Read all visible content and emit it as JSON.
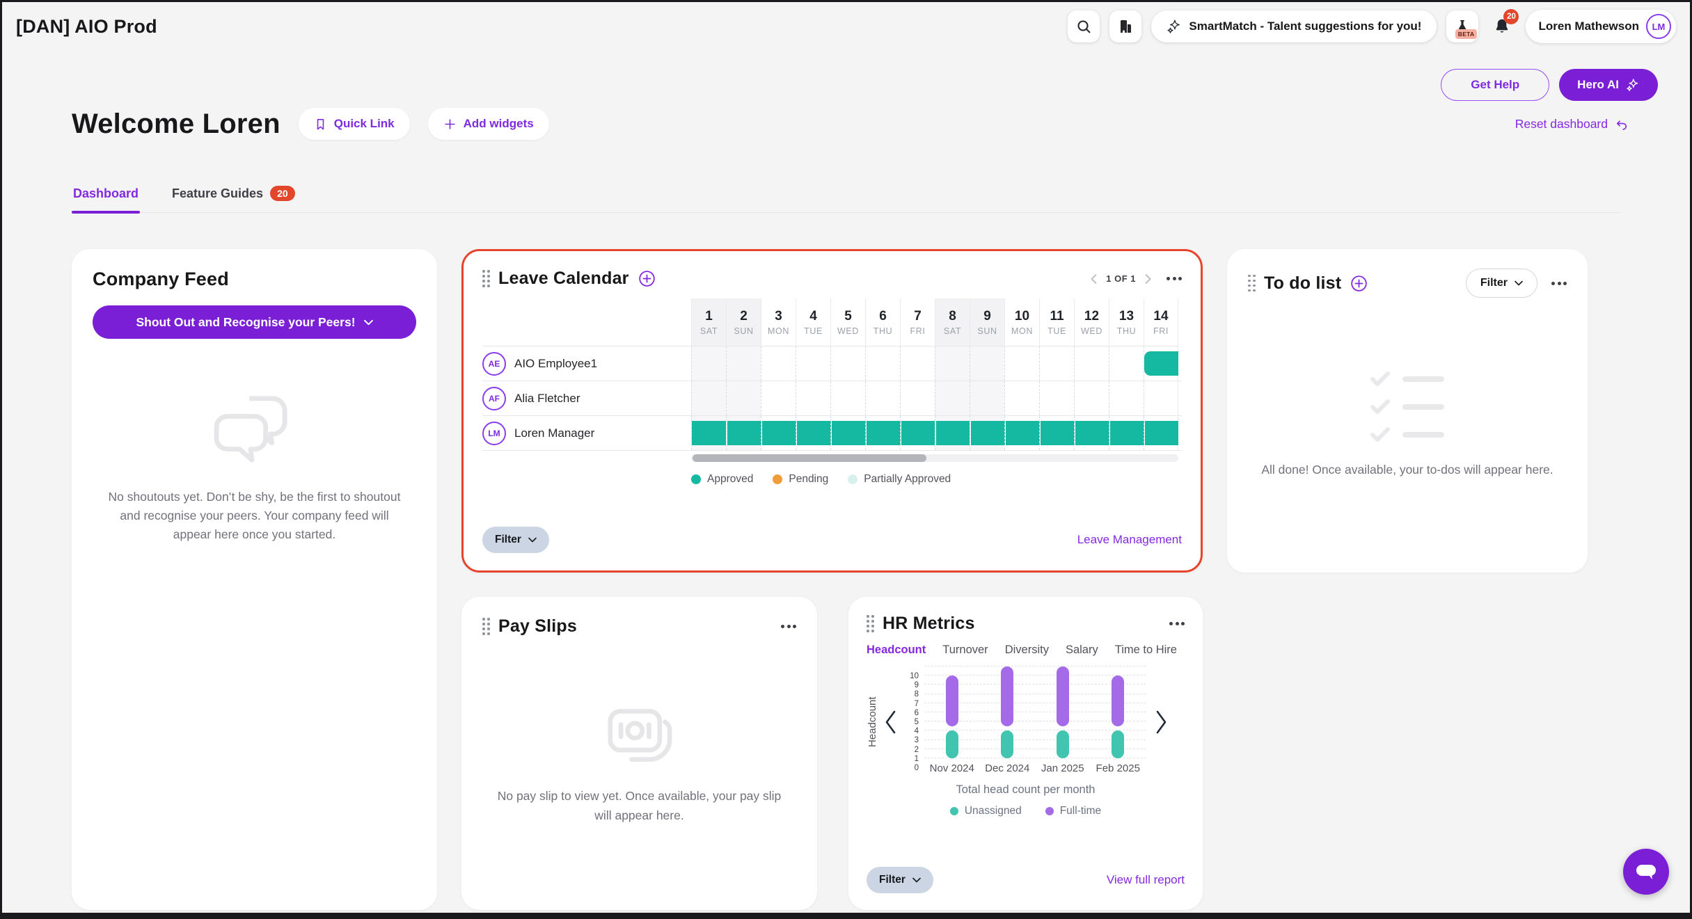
{
  "topbar": {
    "app_title": "[DAN] AIO Prod",
    "smartmatch_label": "SmartMatch - Talent suggestions for you!",
    "beta_label": "BETA",
    "notification_count": "20",
    "user_name": "Loren Mathewson",
    "user_initials": "LM"
  },
  "header": {
    "get_help_label": "Get Help",
    "hero_ai_label": "Hero AI",
    "welcome_title": "Welcome Loren",
    "quick_link_label": "Quick Link",
    "add_widgets_label": "Add widgets",
    "reset_dashboard_label": "Reset dashboard",
    "tabs": [
      {
        "label": "Dashboard",
        "active": true,
        "badge": null
      },
      {
        "label": "Feature Guides",
        "active": false,
        "badge": "20"
      }
    ]
  },
  "company_feed": {
    "title": "Company Feed",
    "shoutout_button_label": "Shout Out and Recognise your Peers!",
    "empty_text": "No shoutouts yet. Don’t be shy, be the first to shoutout and recognise your peers. Your company feed will appear here once you started."
  },
  "leave_calendar": {
    "title": "Leave Calendar",
    "pagination": "1 OF 1",
    "days": [
      {
        "num": "1",
        "dow": "SAT",
        "weekend": true
      },
      {
        "num": "2",
        "dow": "SUN",
        "weekend": true
      },
      {
        "num": "3",
        "dow": "MON",
        "weekend": false
      },
      {
        "num": "4",
        "dow": "TUE",
        "weekend": false
      },
      {
        "num": "5",
        "dow": "WED",
        "weekend": false
      },
      {
        "num": "6",
        "dow": "THU",
        "weekend": false
      },
      {
        "num": "7",
        "dow": "FRI",
        "weekend": false
      },
      {
        "num": "8",
        "dow": "SAT",
        "weekend": true
      },
      {
        "num": "9",
        "dow": "SUN",
        "weekend": true
      },
      {
        "num": "10",
        "dow": "MON",
        "weekend": false
      },
      {
        "num": "11",
        "dow": "TUE",
        "weekend": false
      },
      {
        "num": "12",
        "dow": "WED",
        "weekend": false
      },
      {
        "num": "13",
        "dow": "THU",
        "weekend": false
      },
      {
        "num": "14",
        "dow": "FRI",
        "weekend": false
      }
    ],
    "employees": [
      {
        "initials": "AE",
        "name": "AIO Employee1",
        "leave_ranges": [
          {
            "start": 14,
            "end": 14,
            "round_start": true
          }
        ]
      },
      {
        "initials": "AF",
        "name": "Alia Fletcher",
        "leave_ranges": []
      },
      {
        "initials": "LM",
        "name": "Loren Manager",
        "leave_ranges": [
          {
            "start": 1,
            "end": 14,
            "round_start": false
          }
        ]
      }
    ],
    "approved_color": "#15b8a0",
    "legend": [
      {
        "label": "Approved",
        "color": "#15b8a0"
      },
      {
        "label": "Pending",
        "color": "#f09d3b"
      },
      {
        "label": "Partially Approved",
        "color": "#d9f1ed"
      }
    ],
    "filter_label": "Filter",
    "link_label": "Leave Management"
  },
  "todo": {
    "title": "To do list",
    "filter_label": "Filter",
    "empty_text": "All done! Once available, your to-dos will appear here."
  },
  "pay_slips": {
    "title": "Pay Slips",
    "empty_text": "No pay slip to view yet. Once available, your pay slip will appear here."
  },
  "hr_metrics": {
    "title": "HR Metrics",
    "tabs": [
      "Headcount",
      "Turnover",
      "Diversity",
      "Salary",
      "Time to Hire"
    ],
    "active_tab": "Headcount",
    "filter_label": "Filter",
    "link_label": "View full report"
  },
  "chart_data": {
    "type": "bar",
    "subtype": "stacked-floating-rounded",
    "title": "Total head count per month",
    "ylabel": "Headcount",
    "categories": [
      "Nov 2024",
      "Dec 2024",
      "Jan 2025",
      "Feb 2025"
    ],
    "series": [
      {
        "name": "Unassigned",
        "color": "#41c4b0",
        "ranges": [
          [
            0,
            3
          ],
          [
            0,
            3
          ],
          [
            0,
            3
          ],
          [
            0,
            3
          ]
        ]
      },
      {
        "name": "Full-time",
        "color": "#a56ae8",
        "ranges": [
          [
            3.5,
            9
          ],
          [
            3.5,
            10
          ],
          [
            3.5,
            10
          ],
          [
            3.5,
            9
          ]
        ]
      }
    ],
    "ylim": [
      0,
      10
    ],
    "yticks": [
      0,
      1,
      2,
      3,
      4,
      5,
      6,
      7,
      8,
      9,
      10
    ],
    "grid": "dashed-horizontal",
    "legend_position": "bottom"
  }
}
